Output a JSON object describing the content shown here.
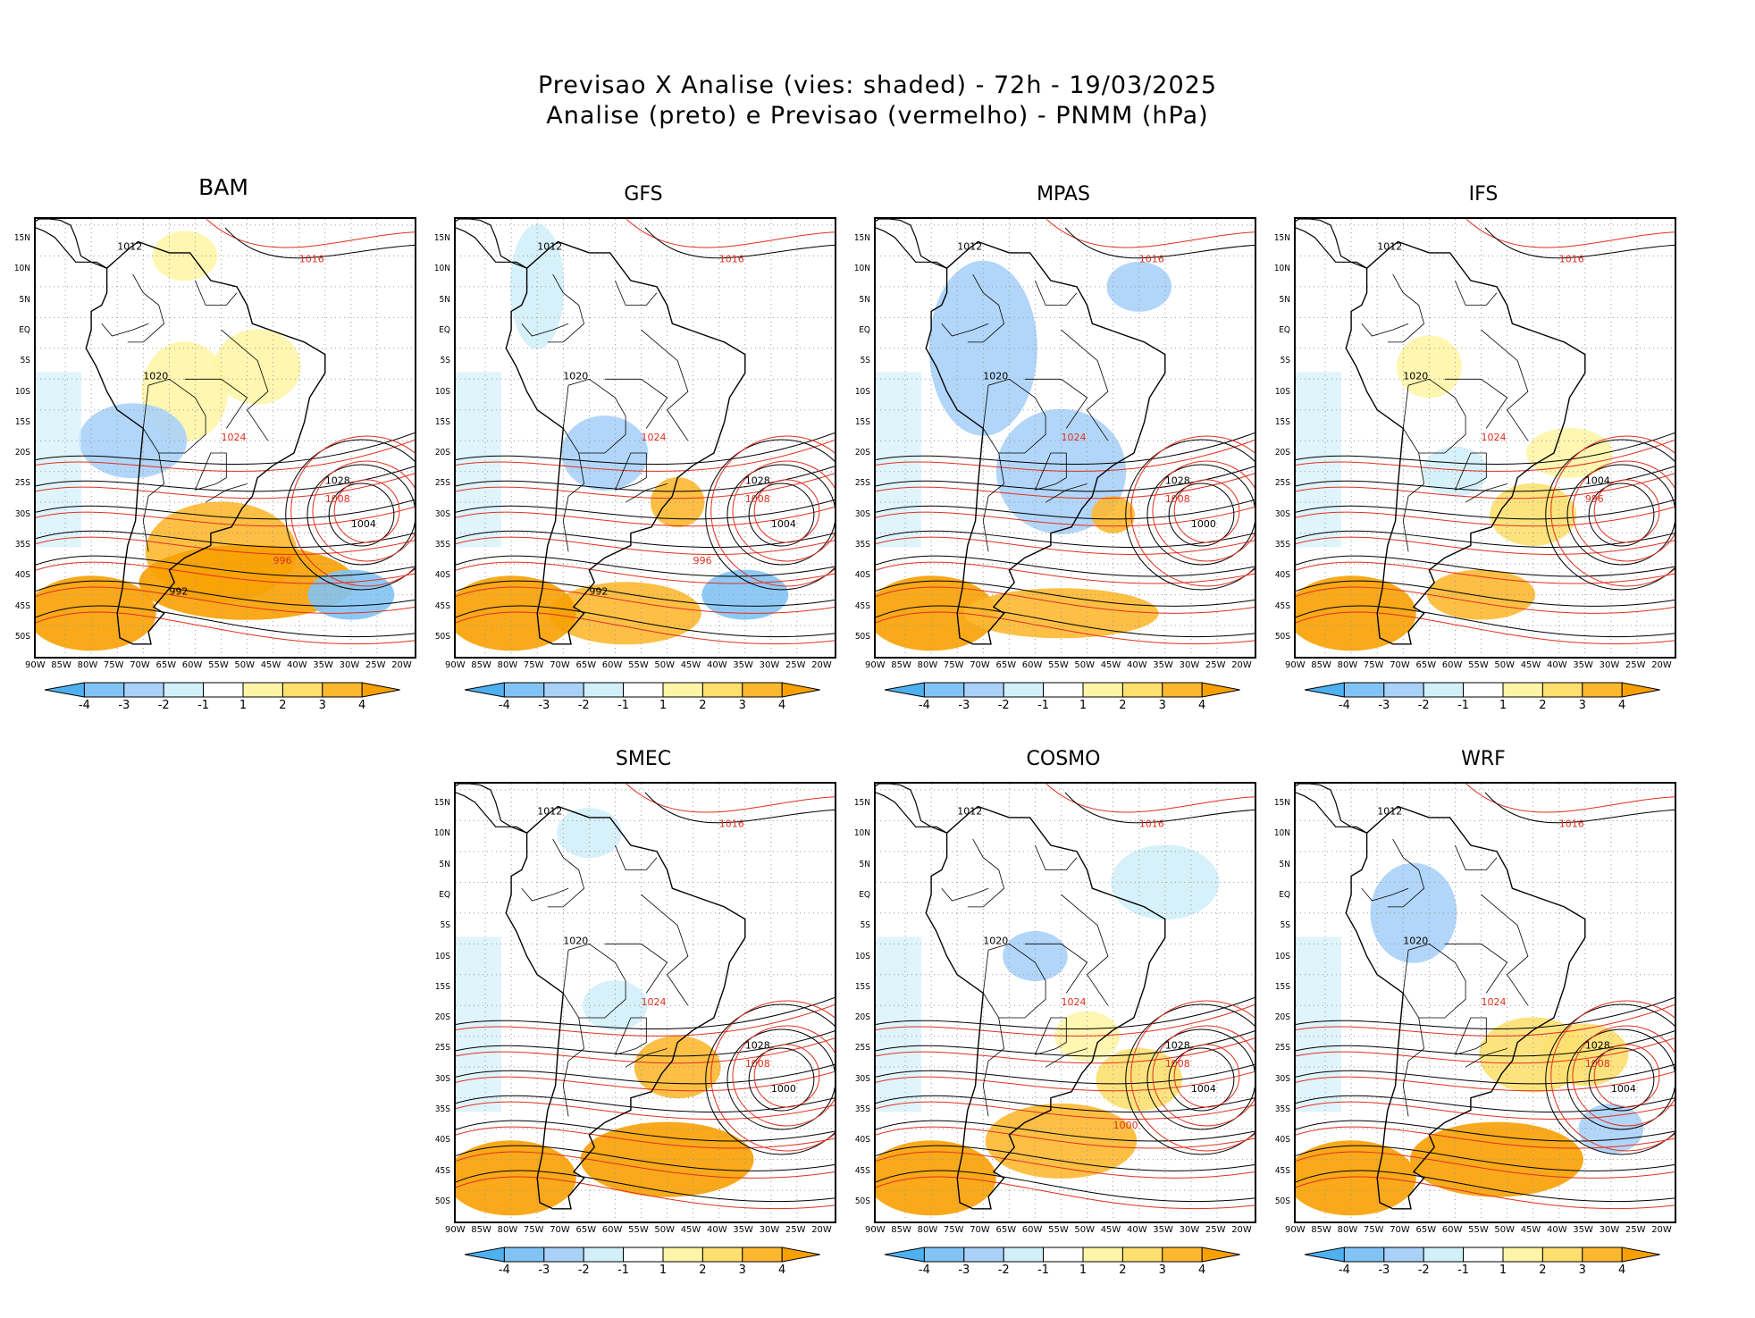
{
  "header": {
    "title_line1": "Previsao X Analise (vies: shaded) - 72h - 19/03/2025",
    "title_line2": "Analise (preto) e Previsao (vermelho) - PNMM (hPa)"
  },
  "axes": {
    "lat_labels": [
      "15N",
      "10N",
      "5N",
      "EQ",
      "5S",
      "10S",
      "15S",
      "20S",
      "25S",
      "30S",
      "35S",
      "40S",
      "45S",
      "50S"
    ],
    "lon_labels": [
      "90W",
      "85W",
      "80W",
      "75W",
      "70W",
      "65W",
      "60W",
      "55W",
      "50W",
      "45W",
      "40W",
      "35W",
      "30W",
      "25W",
      "20W"
    ]
  },
  "colorbar": {
    "labels": [
      "-4",
      "-3",
      "-2",
      "-1",
      "1",
      "2",
      "3",
      "4"
    ],
    "colors": [
      "#4fb0f0",
      "#82c3f5",
      "#aad2f8",
      "#d2f0fa",
      "#ffffff",
      "#fff5a8",
      "#fde070",
      "#fdb830",
      "#f8a000"
    ]
  },
  "palette": {
    "analysis_contour": "#000000",
    "forecast_contour": "#e03020"
  },
  "panels": [
    {
      "model": "BAM",
      "isobars": [
        "1012",
        "1016",
        "1020",
        "1024",
        "1028",
        "1008",
        "1004",
        "996",
        "992"
      ]
    },
    {
      "model": "GFS",
      "isobars": [
        "1012",
        "1016",
        "1020",
        "1024",
        "1028",
        "1008",
        "1004",
        "996",
        "992"
      ]
    },
    {
      "model": "MPAS",
      "isobars": [
        "1012",
        "1016",
        "1020",
        "1024",
        "1028",
        "1008",
        "1000"
      ]
    },
    {
      "model": "IFS",
      "isobars": [
        "1012",
        "1016",
        "1020",
        "1024",
        "1004",
        "996"
      ]
    },
    {
      "model": "SMEC",
      "isobars": [
        "1012",
        "1016",
        "1020",
        "1024",
        "1028",
        "1008",
        "1000"
      ]
    },
    {
      "model": "COSMO",
      "isobars": [
        "1012",
        "1016",
        "1020",
        "1024",
        "1028",
        "1008",
        "1004",
        "1000"
      ]
    },
    {
      "model": "WRF",
      "isobars": [
        "1012",
        "1016",
        "1020",
        "1024",
        "1028",
        "1008",
        "1004"
      ]
    }
  ]
}
